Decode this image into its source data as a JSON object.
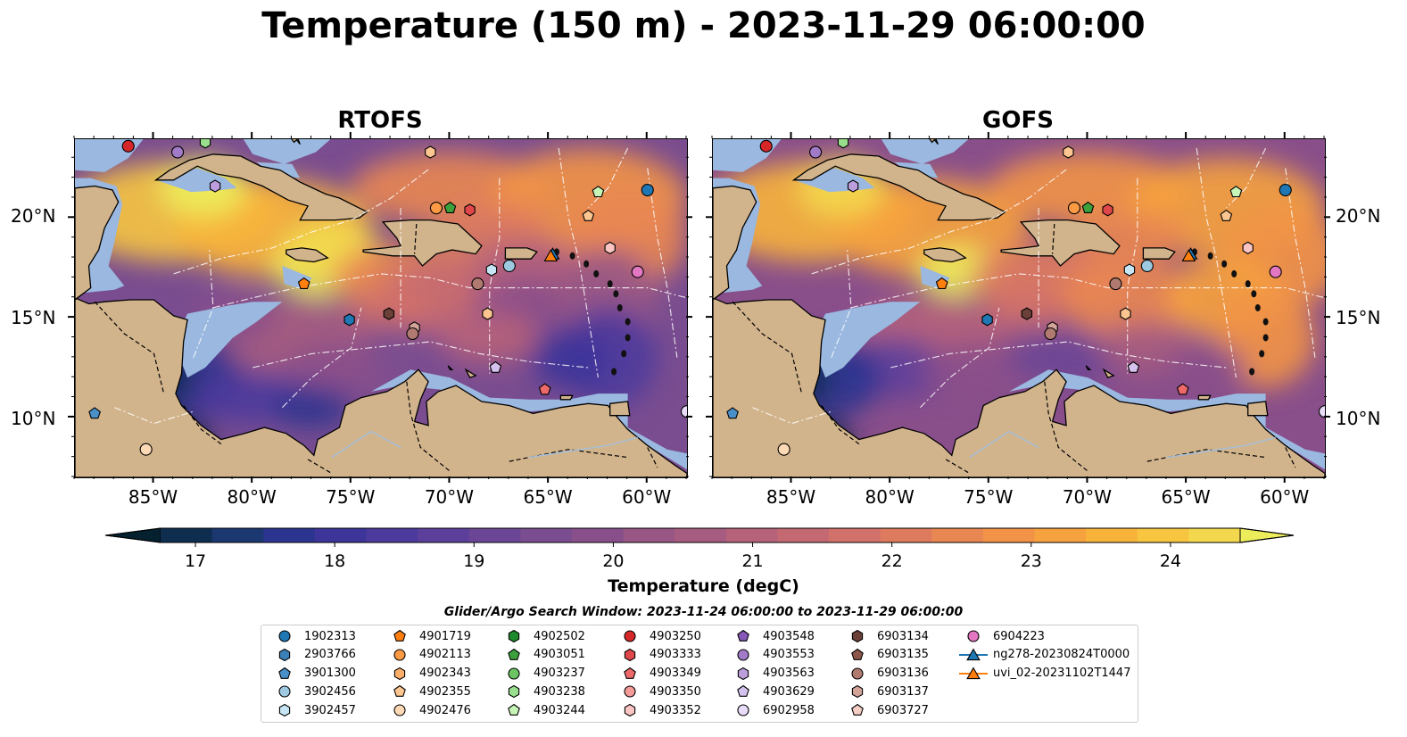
{
  "title": "Temperature (150 m) - 2023-11-29 06:00:00",
  "panels": [
    {
      "title": "RTOFS"
    },
    {
      "title": "GOFS"
    }
  ],
  "lat_ticks": [
    "20°N",
    "15°N",
    "10°N"
  ],
  "lon_ticks": [
    "85°W",
    "80°W",
    "75°W",
    "70°W",
    "65°W",
    "60°W"
  ],
  "colorbar": {
    "label": "Temperature (degC)",
    "ticks": [
      "17",
      "18",
      "19",
      "20",
      "21",
      "22",
      "23",
      "24"
    ],
    "min": 16.75,
    "max": 24.5,
    "colors": [
      "#05202e",
      "#0f2d4f",
      "#1b3870",
      "#2b348f",
      "#3d3599",
      "#4c3a9c",
      "#5c3f9b",
      "#6b4696",
      "#7a4d90",
      "#894f8b",
      "#985685",
      "#a65c80",
      "#b6627a",
      "#c46972",
      "#d2716a",
      "#de7b5e",
      "#e98752",
      "#f29347",
      "#f6a23e",
      "#f8b33a",
      "#f7c540",
      "#f3d84d",
      "#eded5c"
    ]
  },
  "legend": {
    "title": "Glider/Argo Search Window: 2023-11-24 06:00:00 to 2023-11-29 06:00:00",
    "items": [
      {
        "label": "1902313",
        "marker": "circle",
        "color": "#1f77b4"
      },
      {
        "label": "2903766",
        "marker": "hexagon",
        "color": "#3a80b8"
      },
      {
        "label": "3901300",
        "marker": "pentagon",
        "color": "#4a90c8"
      },
      {
        "label": "3902456",
        "marker": "circle",
        "color": "#9ecae1"
      },
      {
        "label": "3902457",
        "marker": "hexagon",
        "color": "#c6e6f5"
      },
      {
        "label": "4901719",
        "marker": "pentagon",
        "color": "#ff7f0e"
      },
      {
        "label": "4902113",
        "marker": "circle",
        "color": "#fd9a44"
      },
      {
        "label": "4902343",
        "marker": "hexagon",
        "color": "#fdae6b"
      },
      {
        "label": "4902355",
        "marker": "pentagon",
        "color": "#fdc690"
      },
      {
        "label": "4902476",
        "marker": "circle",
        "color": "#fdd9b5"
      },
      {
        "label": "4902502",
        "marker": "hexagon",
        "color": "#1e8a2e"
      },
      {
        "label": "4903051",
        "marker": "pentagon",
        "color": "#3ca13c"
      },
      {
        "label": "4903237",
        "marker": "circle",
        "color": "#6cc462"
      },
      {
        "label": "4903238",
        "marker": "hexagon",
        "color": "#98de8c"
      },
      {
        "label": "4903244",
        "marker": "pentagon",
        "color": "#c7f5b8"
      },
      {
        "label": "4903250",
        "marker": "circle",
        "color": "#d62728"
      },
      {
        "label": "4903333",
        "marker": "hexagon",
        "color": "#e0474a"
      },
      {
        "label": "4903349",
        "marker": "pentagon",
        "color": "#ee6a6a"
      },
      {
        "label": "4903350",
        "marker": "circle",
        "color": "#f49a98"
      },
      {
        "label": "4903352",
        "marker": "hexagon",
        "color": "#fcc5c3"
      },
      {
        "label": "4903548",
        "marker": "pentagon",
        "color": "#8758b8"
      },
      {
        "label": "4903553",
        "marker": "circle",
        "color": "#a27bc8"
      },
      {
        "label": "4903563",
        "marker": "hexagon",
        "color": "#bd9edc"
      },
      {
        "label": "4903629",
        "marker": "pentagon",
        "color": "#d6c2ee"
      },
      {
        "label": "6902958",
        "marker": "circle",
        "color": "#e8dcf8"
      },
      {
        "label": "6903134",
        "marker": "hexagon",
        "color": "#6b4038"
      },
      {
        "label": "6903135",
        "marker": "pentagon",
        "color": "#8c564b"
      },
      {
        "label": "6903136",
        "marker": "circle",
        "color": "#b07a70"
      },
      {
        "label": "6903137",
        "marker": "hexagon",
        "color": "#d4a39a"
      },
      {
        "label": "6903727",
        "marker": "pentagon",
        "color": "#f5cfc6"
      },
      {
        "label": "6904223",
        "marker": "circle",
        "color": "#e377c2"
      },
      {
        "label": "ng278-20230824T0000",
        "marker": "triangle-line",
        "color": "#1f77b4"
      },
      {
        "label": "uvi_02-20231102T1447",
        "marker": "triangle-line",
        "color": "#ff7f0e"
      }
    ]
  },
  "floats": [
    {
      "lon": -86.3,
      "lat": 23.6,
      "color": "#d62728",
      "marker": "circle"
    },
    {
      "lon": -83.8,
      "lat": 23.3,
      "color": "#a27bc8",
      "marker": "circle"
    },
    {
      "lon": -82.4,
      "lat": 23.8,
      "color": "#98de8c",
      "marker": "hexagon"
    },
    {
      "lon": -81.9,
      "lat": 21.6,
      "color": "#bd9edc",
      "marker": "hexagon"
    },
    {
      "lon": -71.0,
      "lat": 23.3,
      "color": "#fdc690",
      "marker": "hexagon"
    },
    {
      "lon": -70.7,
      "lat": 20.5,
      "color": "#fd9a44",
      "marker": "circle"
    },
    {
      "lon": -70.0,
      "lat": 20.5,
      "color": "#3ca13c",
      "marker": "pentagon"
    },
    {
      "lon": -69.0,
      "lat": 20.4,
      "color": "#e0474a",
      "marker": "hexagon"
    },
    {
      "lon": -62.5,
      "lat": 21.3,
      "color": "#c7f5b8",
      "marker": "pentagon"
    },
    {
      "lon": -63.0,
      "lat": 20.1,
      "color": "#fdc690",
      "marker": "pentagon"
    },
    {
      "lon": -60.0,
      "lat": 21.4,
      "color": "#1f77b4",
      "marker": "circle"
    },
    {
      "lon": -61.9,
      "lat": 18.5,
      "color": "#fcc5c3",
      "marker": "hexagon"
    },
    {
      "lon": -60.5,
      "lat": 17.3,
      "color": "#e377c2",
      "marker": "circle"
    },
    {
      "lon": -67.9,
      "lat": 17.4,
      "color": "#c6e6f5",
      "marker": "hexagon"
    },
    {
      "lon": -67.0,
      "lat": 17.6,
      "color": "#9ecae1",
      "marker": "circle"
    },
    {
      "lon": -68.6,
      "lat": 16.7,
      "color": "#b07a70",
      "marker": "circle"
    },
    {
      "lon": -68.1,
      "lat": 15.2,
      "color": "#fdc690",
      "marker": "hexagon"
    },
    {
      "lon": -77.4,
      "lat": 16.7,
      "color": "#ff7f0e",
      "marker": "pentagon"
    },
    {
      "lon": -75.1,
      "lat": 14.9,
      "color": "#1f77b4",
      "marker": "hexagon"
    },
    {
      "lon": -73.1,
      "lat": 15.2,
      "color": "#6b4038",
      "marker": "hexagon"
    },
    {
      "lon": -71.8,
      "lat": 14.5,
      "color": "#d4a39a",
      "marker": "hexagon"
    },
    {
      "lon": -71.9,
      "lat": 14.2,
      "color": "#b07a70",
      "marker": "circle"
    },
    {
      "lon": -67.7,
      "lat": 12.5,
      "color": "#d6c2ee",
      "marker": "pentagon"
    },
    {
      "lon": -65.2,
      "lat": 11.4,
      "color": "#ee6a6a",
      "marker": "pentagon"
    },
    {
      "lon": -88.0,
      "lat": 10.2,
      "color": "#4a90c8",
      "marker": "pentagon"
    },
    {
      "lon": -85.4,
      "lat": 8.4,
      "color": "#fdd9b5",
      "marker": "circle"
    },
    {
      "lon": -58.0,
      "lat": 10.3,
      "color": "#e8dcf8",
      "marker": "circle"
    }
  ],
  "gliders": [
    {
      "lon": -64.8,
      "lat": 18.2,
      "color": "#1f77b4"
    },
    {
      "lon": -64.9,
      "lat": 18.1,
      "color": "#ff7f0e"
    }
  ]
}
